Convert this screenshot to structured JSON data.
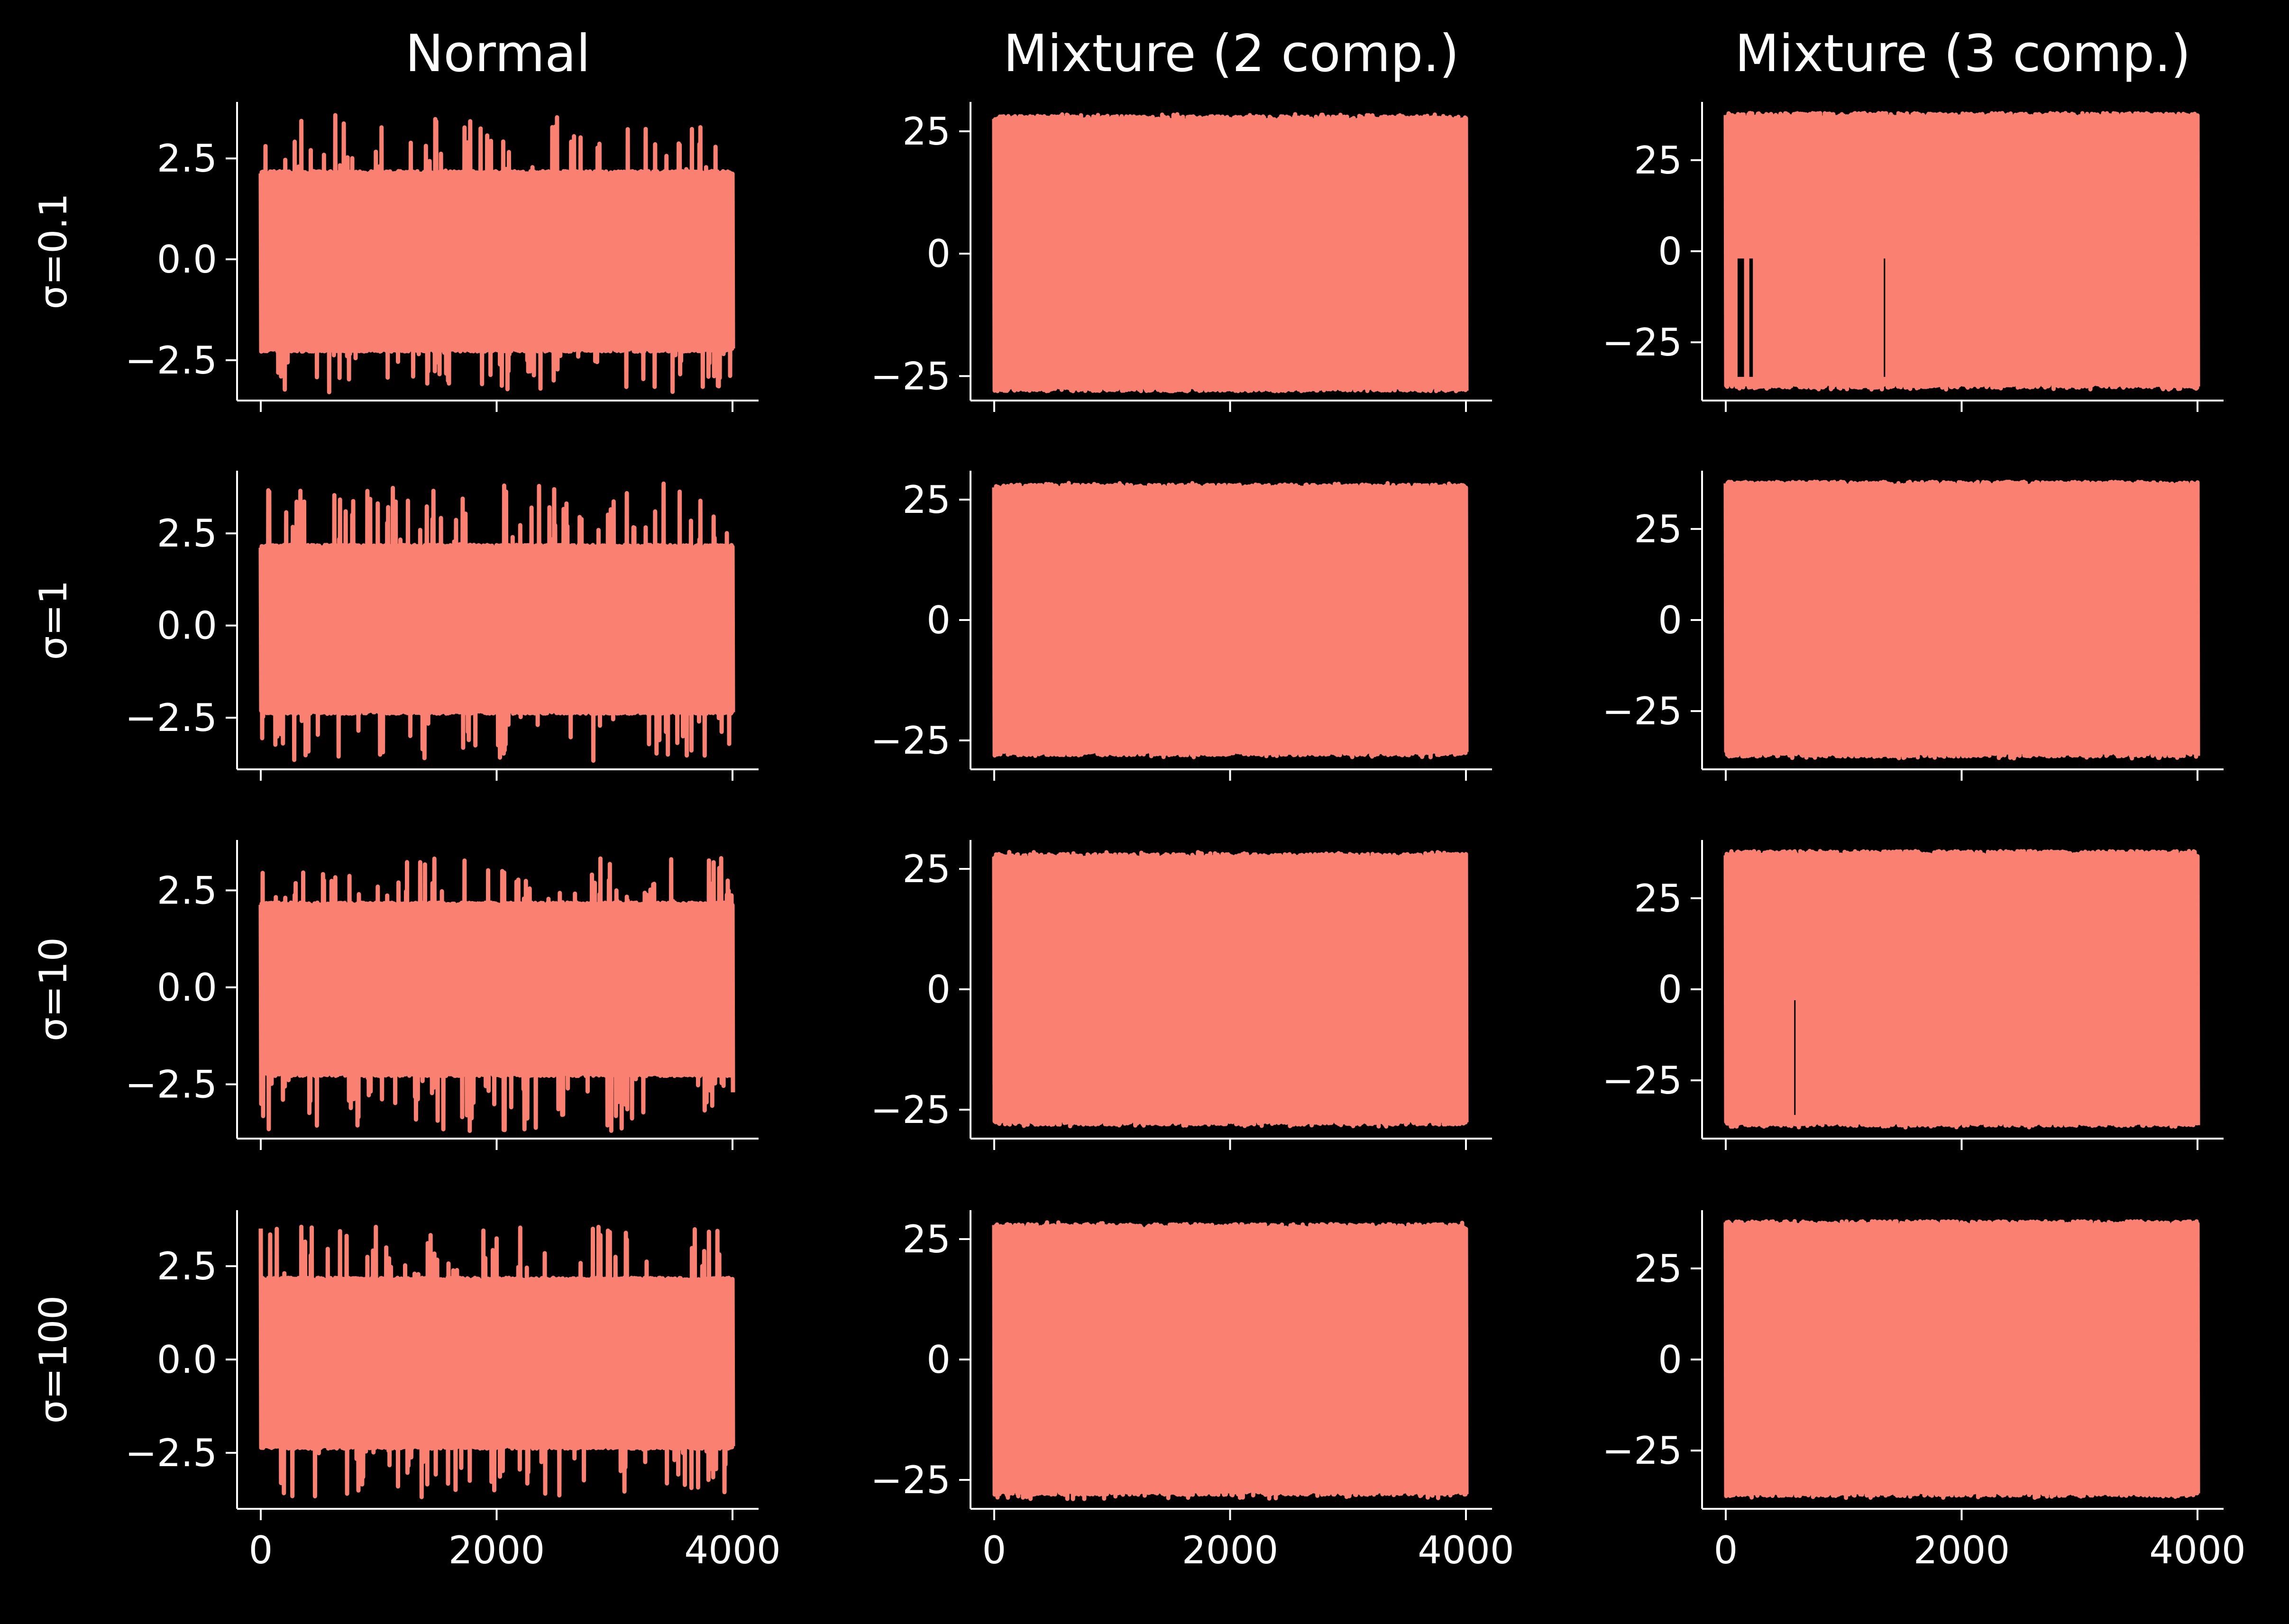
{
  "chart_data": {
    "type": "line",
    "layout": "4x3 grid of trace plots, shared x-axis per column",
    "background": "#000000",
    "foreground": "#ffffff",
    "line_color": "#fa8072",
    "column_titles": [
      "Normal",
      "Mixture (2 comp.)",
      "Mixture (3 comp.)"
    ],
    "row_labels": [
      "σ=0.1",
      "σ=1",
      "σ=10",
      "σ=100"
    ],
    "x": {
      "range": [
        0,
        4000
      ],
      "ticks": [
        0,
        2000,
        4000
      ],
      "tick_labels": [
        "0",
        "2000",
        "4000"
      ],
      "label_on": "bottom row only"
    },
    "columns": [
      {
        "title": "Normal",
        "yticks": [
          -2.5,
          0,
          2.5
        ],
        "ytick_labels": [
          "−2.5",
          "0.0",
          "2.5"
        ],
        "panels": [
          {
            "row": "σ=0.1",
            "ylim": [
              -3.5,
              3.9
            ],
            "band": [
              -2.2,
              2.1
            ],
            "min": -3.3,
            "max": 3.6
          },
          {
            "row": "σ=1",
            "ylim": [
              -3.9,
              4.2
            ],
            "band": [
              -2.3,
              2.1
            ],
            "min": -3.7,
            "max": 3.9
          },
          {
            "row": "σ=10",
            "ylim": [
              -3.9,
              3.8
            ],
            "band": [
              -2.2,
              2.1
            ],
            "min": -3.7,
            "max": 3.4
          },
          {
            "row": "σ=100",
            "ylim": [
              -4.0,
              4.0
            ],
            "band": [
              -2.3,
              2.1
            ],
            "min": -3.8,
            "max": 3.6
          }
        ]
      },
      {
        "title": "Mixture (2 comp.)",
        "yticks": [
          -25,
          0,
          25
        ],
        "ytick_labels": [
          "−25",
          "0",
          "25"
        ],
        "panels": [
          {
            "row": "σ=0.1",
            "ylim": [
              -30,
              31
            ],
            "band": [
              -27,
              27
            ],
            "min": -28,
            "max": 28.5
          },
          {
            "row": "σ=1",
            "ylim": [
              -31,
              31
            ],
            "band": [
              -27,
              27
            ],
            "min": -28.5,
            "max": 28.5
          },
          {
            "row": "σ=10",
            "ylim": [
              -31,
              31
            ],
            "band": [
              -27,
              27
            ],
            "min": -28.5,
            "max": 28.5
          },
          {
            "row": "σ=100",
            "ylim": [
              -31,
              31
            ],
            "band": [
              -27,
              27
            ],
            "min": -29,
            "max": 28.5
          }
        ]
      },
      {
        "title": "Mixture (3 comp.)",
        "yticks": [
          -25,
          0,
          25
        ],
        "ytick_labels": [
          "−25",
          "0",
          "25"
        ],
        "panels": [
          {
            "row": "σ=0.1",
            "ylim": [
              -41,
              41
            ],
            "band": [
              -36,
              36.5
            ],
            "min": -38,
            "max": 38,
            "dips": [
              {
                "x": 100,
                "w": 55,
                "to": -2
              },
              {
                "x": 200,
                "w": 30,
                "to": -2
              },
              {
                "x": 1340,
                "w": 6,
                "to": -2
              }
            ]
          },
          {
            "row": "σ=1",
            "ylim": [
              -41,
              41
            ],
            "band": [
              -36,
              36.5
            ],
            "min": -38,
            "max": 38,
            "dips": []
          },
          {
            "row": "σ=10",
            "ylim": [
              -41,
              41
            ],
            "band": [
              -36,
              36.5
            ],
            "min": -38,
            "max": 38,
            "dips": [
              {
                "x": 580,
                "w": 6,
                "to": -3
              }
            ]
          },
          {
            "row": "σ=100",
            "ylim": [
              -41,
              41
            ],
            "band": [
              -36,
              36.5
            ],
            "min": -38,
            "max": 38,
            "dips": []
          }
        ]
      }
    ]
  }
}
